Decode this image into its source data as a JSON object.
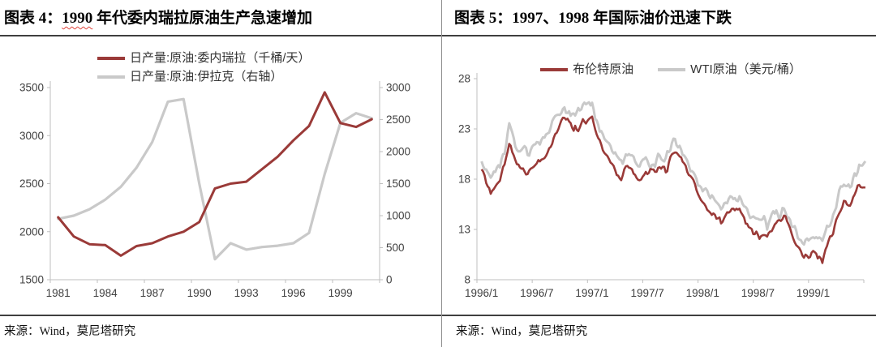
{
  "colors": {
    "series_red": "#9A3A38",
    "series_gray": "#C9C9C9",
    "axis_line": "#BFBFBF",
    "axis_label": "#404040",
    "squiggle_red": "#E0453C"
  },
  "panels": [
    {
      "caption": {
        "prefix": "图表 4：",
        "highlight": "1990",
        "suffix": " 年代委内瑞拉原油生产急速增加"
      },
      "source": "来源：Wind，莫尼塔研究"
    },
    {
      "caption": {
        "prefix": "图表 5：",
        "highlight": "",
        "suffix": "1997、1998 年国际油价迅速下跌"
      },
      "source": "来源：Wind，莫尼塔研究"
    }
  ],
  "chart_data": [
    {
      "type": "line",
      "title": "图表 4：1990 年代委内瑞拉原油生产急速增加",
      "categories": [
        1981,
        1982,
        1983,
        1984,
        1985,
        1986,
        1987,
        1988,
        1989,
        1990,
        1991,
        1992,
        1993,
        1994,
        1995,
        1996,
        1997,
        1998,
        1999,
        2000,
        2001
      ],
      "series": [
        {
          "name": "日产量:原油:委内瑞拉（千桶/天）",
          "axis": "left",
          "color_key": "series_red",
          "values": [
            2150,
            1950,
            1870,
            1860,
            1750,
            1850,
            1880,
            1950,
            2000,
            2100,
            2450,
            2500,
            2520,
            2650,
            2780,
            2950,
            3100,
            3450,
            3130,
            3090,
            3170
          ]
        },
        {
          "name": "日产量:原油:伊拉克（右轴）",
          "axis": "right",
          "color_key": "series_gray",
          "values": [
            950,
            1000,
            1100,
            1250,
            1450,
            1750,
            2150,
            2780,
            2820,
            1500,
            320,
            570,
            470,
            510,
            530,
            570,
            730,
            1650,
            2450,
            2600,
            2520
          ]
        }
      ],
      "left_axis": {
        "min": 1500,
        "max": 3500,
        "ticks": [
          1500,
          2000,
          2500,
          3000,
          3500
        ]
      },
      "right_axis": {
        "min": 0,
        "max": 3000,
        "ticks": [
          0,
          500,
          1000,
          1500,
          2000,
          2500,
          3000
        ]
      },
      "x_tick_labels": [
        "1981",
        "1984",
        "1987",
        "1990",
        "1993",
        "1996",
        "1999"
      ],
      "grid": false,
      "legend_position": "top-left"
    },
    {
      "type": "line",
      "title": "图表 5：1997、1998 年国际油价迅速下跌",
      "x_unit": "month",
      "x_start": "1996/1",
      "x_end": "1999/6",
      "series": [
        {
          "name": "布伦特原油",
          "color_key": "series_red",
          "monthly_values": [
            18.8,
            16.5,
            17.8,
            21.5,
            19.2,
            18.6,
            19.4,
            20.3,
            22.5,
            24.2,
            22.8,
            23.8,
            24.0,
            21.5,
            19.8,
            17.9,
            19.4,
            17.8,
            18.6,
            18.9,
            19.2,
            20.8,
            19.6,
            17.6,
            15.8,
            14.6,
            13.8,
            14.9,
            15.1,
            13.2,
            12.4,
            12.3,
            13.8,
            14.4,
            11.9,
            10.2,
            10.8,
            10.0,
            12.4,
            15.2,
            15.6,
            17.4
          ]
        },
        {
          "name": "WTI原油（美元/桶）",
          "color_key": "series_gray",
          "monthly_values": [
            19.8,
            18.2,
            19.6,
            23.3,
            21.2,
            20.4,
            21.4,
            22.2,
            24.2,
            25.4,
            24.2,
            25.6,
            25.4,
            22.8,
            21.0,
            19.6,
            20.9,
            19.2,
            19.9,
            20.1,
            20.3,
            21.8,
            20.6,
            18.6,
            17.0,
            16.2,
            15.3,
            16.0,
            16.2,
            14.4,
            14.4,
            13.4,
            15.2,
            14.7,
            13.0,
            11.6,
            12.6,
            12.0,
            14.1,
            17.2,
            17.5,
            19.2
          ]
        }
      ],
      "y_axis": {
        "min": 8,
        "max": 28,
        "ticks": [
          8,
          13,
          18,
          23,
          28
        ]
      },
      "x_tick_labels": [
        "1996/1",
        "1996/7",
        "1997/1",
        "1997/7",
        "1998/1",
        "1998/7",
        "1999/1"
      ],
      "grid": false,
      "legend_position": "top"
    }
  ]
}
